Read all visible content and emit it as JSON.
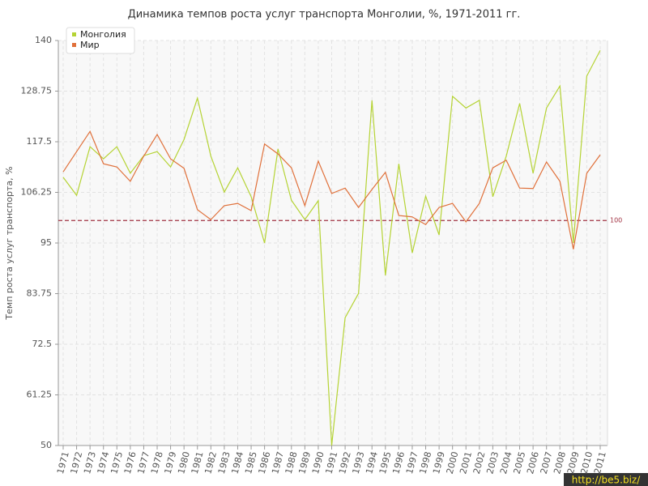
{
  "chart_data": {
    "type": "line",
    "title": "Динамика темпов роста услуг транспорта Монголии, %, 1971-2011 гг.",
    "y_label": "Темп роста услуг транспорта, %",
    "categories": [
      "1971",
      "1972",
      "1973",
      "1974",
      "1975",
      "1976",
      "1977",
      "1978",
      "1979",
      "1980",
      "1981",
      "1982",
      "1983",
      "1984",
      "1985",
      "1986",
      "1987",
      "1988",
      "1989",
      "1990",
      "1991",
      "1992",
      "1993",
      "1994",
      "1995",
      "1996",
      "1997",
      "1998",
      "1999",
      "2000",
      "2001",
      "2002",
      "2003",
      "2004",
      "2005",
      "2006",
      "2007",
      "2008",
      "2009",
      "2010",
      "2011"
    ],
    "series": [
      {
        "name": "Монголия",
        "color": "#b5d334",
        "values": [
          109.6,
          105.6,
          116.4,
          113.7,
          116.4,
          110.5,
          114.4,
          115.3,
          111.9,
          118,
          127.2,
          114.3,
          106.3,
          111.7,
          105.3,
          95,
          115.9,
          104.5,
          100.2,
          104.4,
          50,
          78.4,
          83.8,
          126.7,
          87.8,
          112.6,
          92.8,
          105.4,
          96.8,
          127.6,
          125,
          126.7,
          105.3,
          114.3,
          126,
          110.5,
          125,
          129.9,
          95,
          132.1,
          137.8
        ]
      },
      {
        "name": "Мир",
        "color": "#e0703a",
        "values": [
          110.8,
          115.3,
          119.8,
          112.6,
          111.9,
          108.7,
          114.3,
          119.1,
          113.7,
          111.6,
          102.4,
          100.2,
          103.3,
          103.8,
          102.2,
          117,
          114.8,
          111.7,
          103.3,
          113.2,
          106,
          107.2,
          102.9,
          106.9,
          110.7,
          101.1,
          100.8,
          99.1,
          102.9,
          103.8,
          99.7,
          103.8,
          111.7,
          113.4,
          107.2,
          107.1,
          113,
          108.7,
          93.6,
          110.5,
          114.6
        ]
      }
    ],
    "ylim": [
      50,
      140
    ],
    "yticks": [
      50,
      61.25,
      72.5,
      83.75,
      95,
      106.25,
      117.5,
      128.75,
      140
    ],
    "grid": true,
    "legend": "top-left",
    "reference_line": 100,
    "reference_color": "#a03040",
    "watermark": "http://be5.biz/"
  }
}
